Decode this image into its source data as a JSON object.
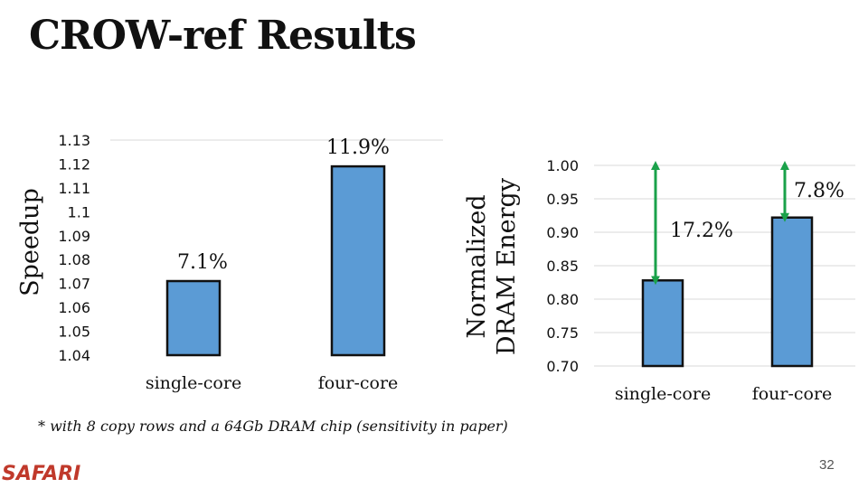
{
  "slide": {
    "title": "CROW-ref Results",
    "footnote": "* with 8 copy rows and a 64Gb DRAM chip (sensitivity in paper)",
    "logo": "SAFARI",
    "page_number": "32"
  },
  "colors": {
    "bar_fill": "#5b9bd5",
    "bar_stroke": "#111111",
    "arrow": "#1aa14a",
    "grid": "#d9d9d9",
    "logo": "#c0392b"
  },
  "chart_data": [
    {
      "type": "bar",
      "ylabel": "Speedup",
      "categories": [
        "single-core",
        "four-core"
      ],
      "values": [
        1.071,
        1.119
      ],
      "data_labels": [
        "7.1%",
        "11.9%"
      ],
      "ylim": [
        1.04,
        1.13
      ],
      "yticks": [
        "1.13",
        "1.12",
        "1.11",
        "1.1",
        "1.09",
        "1.08",
        "1.07",
        "1.06",
        "1.05",
        "1.04"
      ],
      "ytick_values": [
        1.13,
        1.12,
        1.11,
        1.1,
        1.09,
        1.08,
        1.07,
        1.06,
        1.05,
        1.04
      ],
      "grid": true
    },
    {
      "type": "bar",
      "ylabel_lines": [
        "Normalized",
        "DRAM Energy"
      ],
      "categories": [
        "single-core",
        "four-core"
      ],
      "values": [
        0.828,
        0.922
      ],
      "ylim": [
        0.7,
        1.0
      ],
      "yticks": [
        "1.00",
        "0.95",
        "0.90",
        "0.85",
        "0.80",
        "0.75",
        "0.70"
      ],
      "ytick_values": [
        1.0,
        0.95,
        0.9,
        0.85,
        0.8,
        0.75,
        0.7
      ],
      "annotations": [
        {
          "label": "17.2%",
          "from": 1.0,
          "to": 0.828,
          "category": 0
        },
        {
          "label": "7.8%",
          "from": 1.0,
          "to": 0.922,
          "category": 1
        }
      ],
      "grid": true
    }
  ]
}
